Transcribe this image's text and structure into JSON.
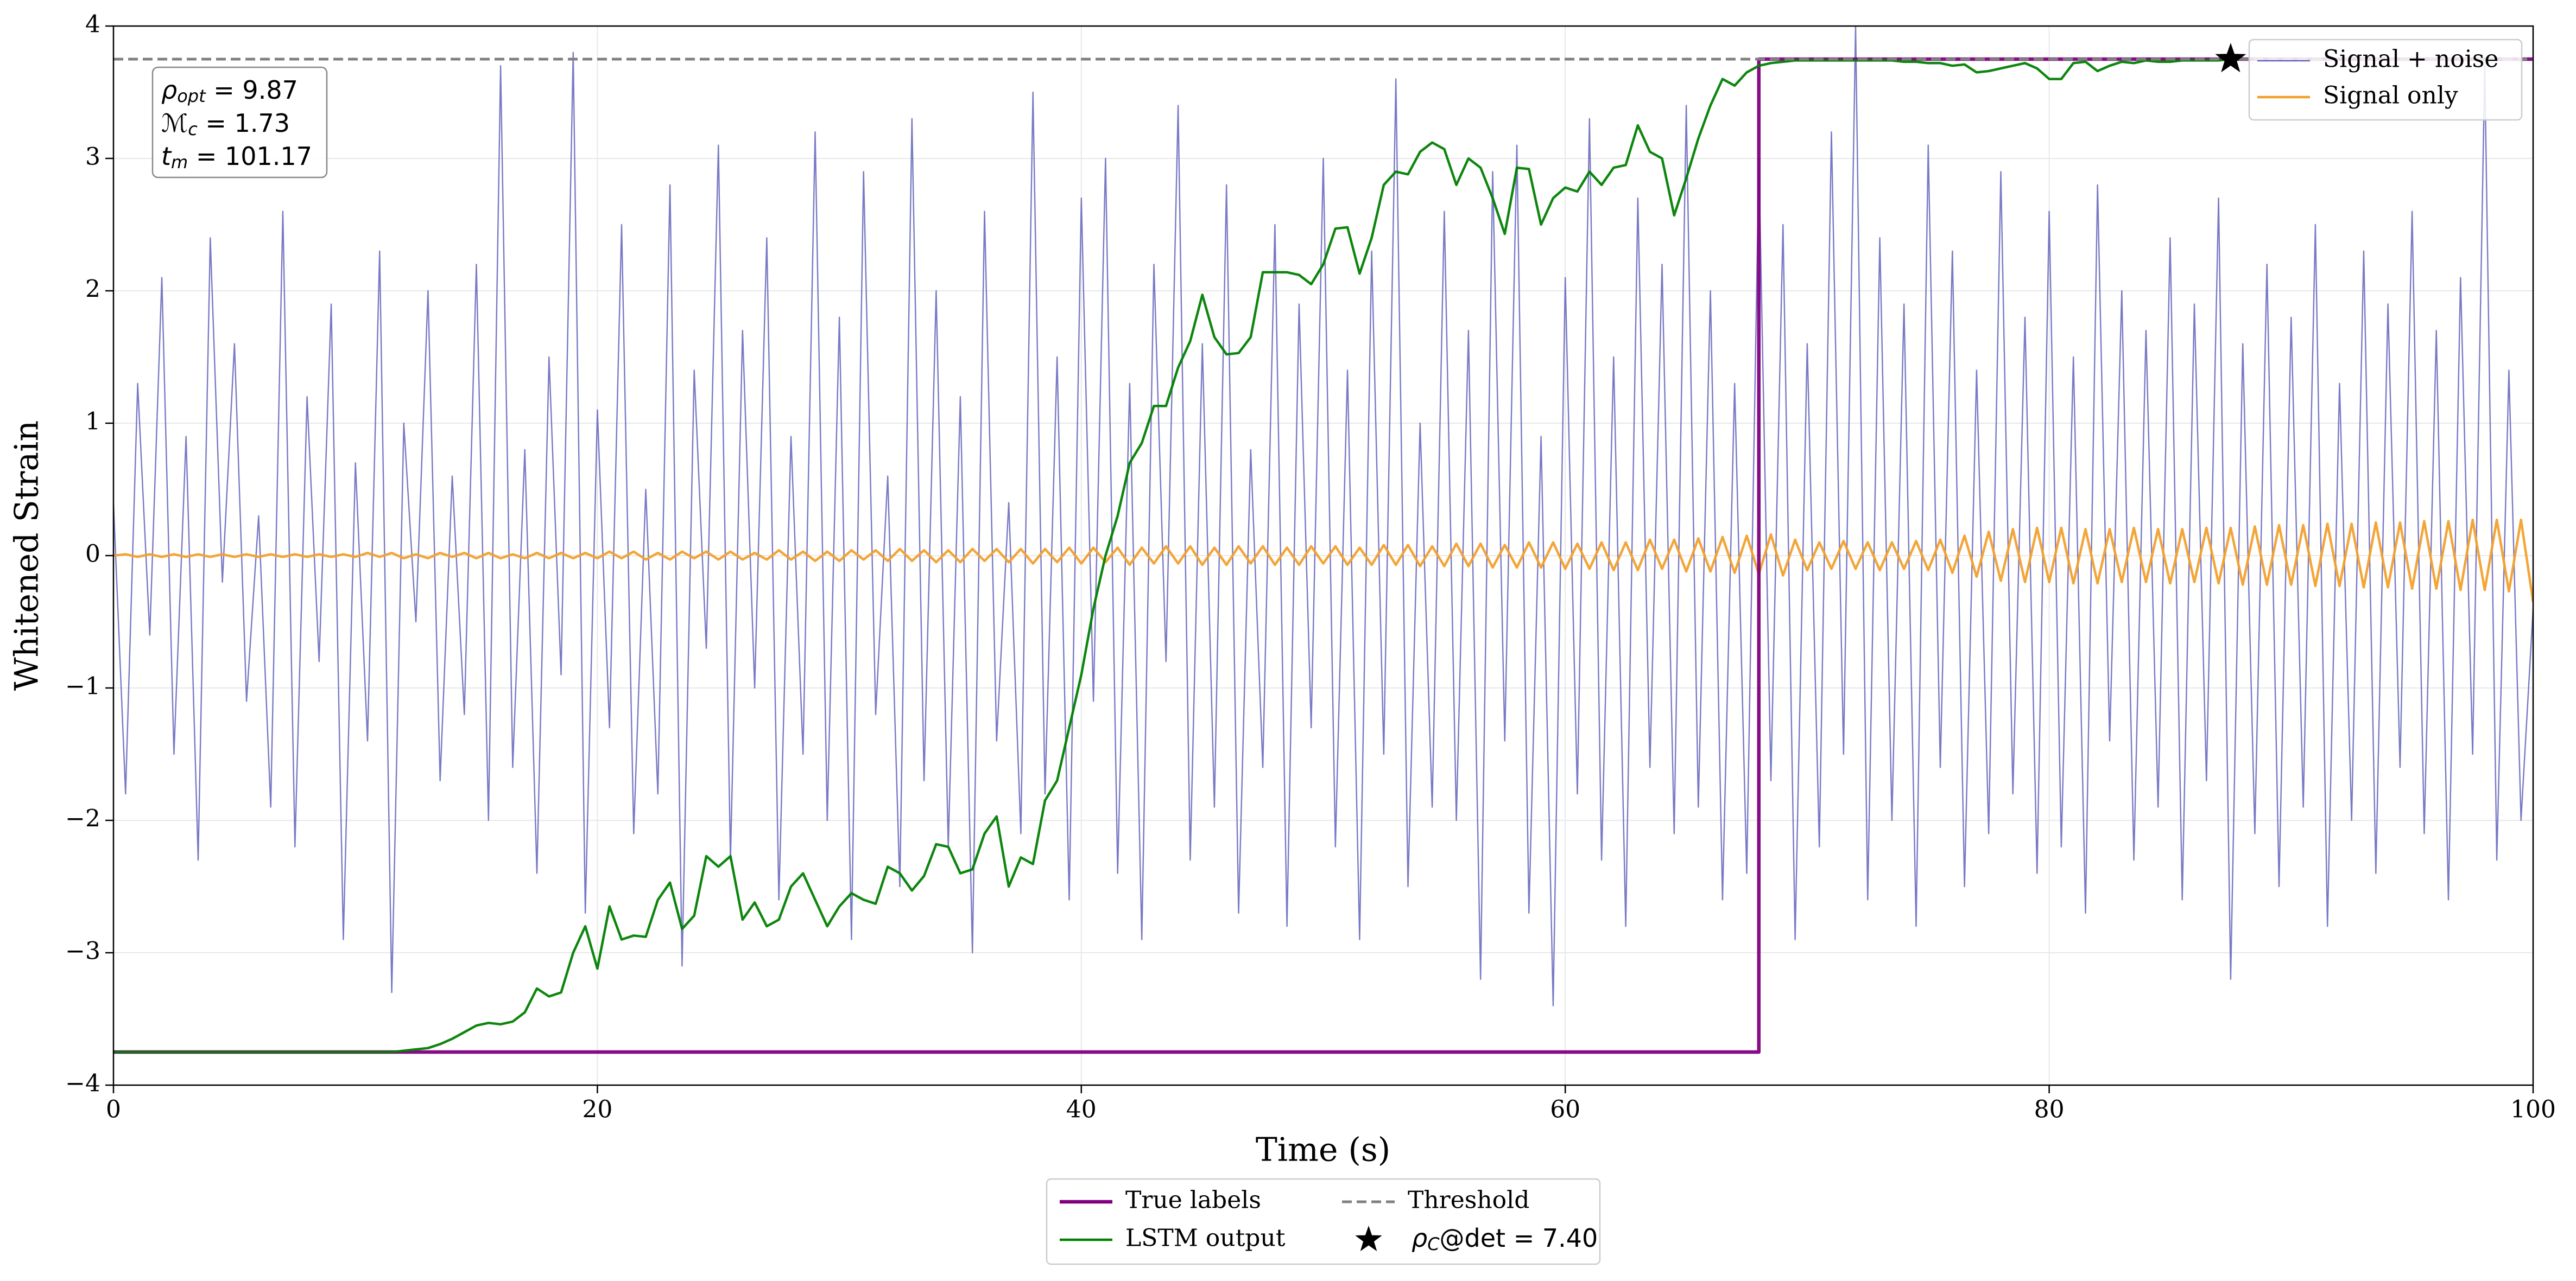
{
  "chart_data": {
    "type": "line",
    "x_label": "Time (s)",
    "y_label": "Whitened Strain",
    "xlim": [
      0,
      100
    ],
    "ylim": [
      -4,
      4
    ],
    "xticks": [
      0,
      20,
      40,
      60,
      80,
      100
    ],
    "yticks": [
      {
        "value": -4,
        "label": "−4"
      },
      {
        "value": -3,
        "label": "−3"
      },
      {
        "value": -2,
        "label": "−2"
      },
      {
        "value": -1,
        "label": "−1"
      },
      0,
      1,
      2,
      3,
      4
    ],
    "grid": true,
    "x": [
      0,
      0.5,
      1,
      1.5,
      2,
      2.5,
      3,
      3.5,
      4,
      4.5,
      5,
      5.5,
      6,
      6.5,
      7,
      7.5,
      8,
      8.5,
      9,
      9.5,
      10,
      10.5,
      11,
      11.5,
      12,
      12.5,
      13,
      13.5,
      14,
      14.5,
      15,
      15.5,
      16,
      16.5,
      17,
      17.5,
      18,
      18.5,
      19,
      19.5,
      20,
      20.5,
      21,
      21.5,
      22,
      22.5,
      23,
      23.5,
      24,
      24.5,
      25,
      25.5,
      26,
      26.5,
      27,
      27.5,
      28,
      28.5,
      29,
      29.5,
      30,
      30.5,
      31,
      31.5,
      32,
      32.5,
      33,
      33.5,
      34,
      34.5,
      35,
      35.5,
      36,
      36.5,
      37,
      37.5,
      38,
      38.5,
      39,
      39.5,
      40,
      40.5,
      41,
      41.5,
      42,
      42.5,
      43,
      43.5,
      44,
      44.5,
      45,
      45.5,
      46,
      46.5,
      47,
      47.5,
      48,
      48.5,
      49,
      49.5,
      50,
      50.5,
      51,
      51.5,
      52,
      52.5,
      53,
      53.5,
      54,
      54.5,
      55,
      55.5,
      56,
      56.5,
      57,
      57.5,
      58,
      58.5,
      59,
      59.5,
      60,
      60.5,
      61,
      61.5,
      62,
      62.5,
      63,
      63.5,
      64,
      64.5,
      65,
      65.5,
      66,
      66.5,
      67,
      67.5,
      68,
      68.5,
      69,
      69.5,
      70,
      70.5,
      71,
      71.5,
      72,
      72.5,
      73,
      73.5,
      74,
      74.5,
      75,
      75.5,
      76,
      76.5,
      77,
      77.5,
      78,
      78.5,
      79,
      79.5,
      80,
      80.5,
      81,
      81.5,
      82,
      82.5,
      83,
      83.5,
      84,
      84.5,
      85,
      85.5,
      86,
      86.5,
      87,
      87.5,
      88,
      88.5,
      89,
      89.5,
      90,
      90.5,
      91,
      91.5,
      92,
      92.5,
      93,
      93.5,
      94,
      94.5,
      95,
      95.5,
      96,
      96.5,
      97,
      97.5,
      98,
      98.5,
      99,
      99.5,
      100
    ],
    "series": [
      {
        "name": "Signal + noise",
        "color": "#6262bb",
        "legend": "upper right",
        "values": [
          0.4,
          -1.8,
          1.3,
          -0.6,
          2.1,
          -1.5,
          0.9,
          -2.3,
          2.4,
          -0.2,
          1.6,
          -1.1,
          0.3,
          -1.9,
          2.6,
          -2.2,
          1.2,
          -0.8,
          1.9,
          -2.9,
          0.7,
          -1.4,
          2.3,
          -3.3,
          1.0,
          -0.5,
          2.0,
          -1.7,
          0.6,
          -1.2,
          2.2,
          -2.0,
          3.7,
          -1.6,
          0.8,
          -2.4,
          1.5,
          -0.9,
          3.8,
          -2.7,
          1.1,
          -1.3,
          2.5,
          -2.1,
          0.5,
          -1.8,
          2.8,
          -3.1,
          1.4,
          -0.7,
          3.1,
          -2.3,
          1.7,
          -1.0,
          2.4,
          -2.6,
          0.9,
          -1.5,
          3.2,
          -2.0,
          1.8,
          -2.9,
          2.9,
          -1.2,
          0.6,
          -2.5,
          3.3,
          -1.7,
          2.0,
          -2.2,
          1.2,
          -3.0,
          2.6,
          -1.4,
          0.4,
          -2.1,
          3.5,
          -1.8,
          1.5,
          -2.6,
          2.7,
          -1.1,
          3.0,
          -2.4,
          1.3,
          -2.9,
          2.2,
          -0.8,
          3.4,
          -2.3,
          1.6,
          -1.9,
          2.8,
          -2.7,
          0.8,
          -1.6,
          2.5,
          -2.8,
          1.9,
          -1.3,
          3.0,
          -2.2,
          1.4,
          -2.9,
          2.3,
          -1.5,
          3.6,
          -2.5,
          1.0,
          -1.9,
          2.6,
          -2.0,
          1.7,
          -3.2,
          2.9,
          -1.4,
          3.1,
          -2.7,
          0.9,
          -3.4,
          2.1,
          -1.8,
          3.3,
          -2.3,
          1.5,
          -2.8,
          2.7,
          -1.6,
          2.2,
          -2.1,
          3.4,
          -1.9,
          2.0,
          -2.6,
          1.3,
          -2.4,
          3.0,
          -1.7,
          2.5,
          -2.9,
          1.6,
          -2.2,
          3.2,
          -1.5,
          4.0,
          -2.6,
          2.4,
          -2.0,
          1.9,
          -2.8,
          3.1,
          -1.6,
          2.3,
          -2.5,
          1.4,
          -2.1,
          2.9,
          -1.8,
          1.8,
          -2.4,
          2.6,
          -2.2,
          1.5,
          -2.7,
          2.8,
          -1.4,
          2.0,
          -2.3,
          1.7,
          -1.9,
          2.4,
          -2.6,
          1.9,
          -1.7,
          2.7,
          -3.2,
          1.6,
          -2.1,
          2.2,
          -2.5,
          1.8,
          -1.9,
          2.5,
          -2.8,
          1.3,
          -2.0,
          2.3,
          -2.4,
          1.9,
          -1.6,
          2.6,
          -2.1,
          1.7,
          -2.6,
          2.1,
          -1.5,
          3.7,
          -2.3,
          1.4,
          -2.0,
          -0.4
        ]
      },
      {
        "name": "Signal only",
        "color": "#f2a02c",
        "legend": "upper right",
        "values": [
          0,
          0.01,
          -0.01,
          0.01,
          -0.01,
          0.01,
          -0.01,
          0.01,
          -0.01,
          0.01,
          -0.01,
          0.01,
          -0.01,
          0.01,
          -0.01,
          0.01,
          -0.01,
          0.01,
          -0.01,
          0.01,
          -0.01,
          0.02,
          -0.01,
          0.02,
          -0.02,
          0.01,
          -0.02,
          0.02,
          -0.01,
          0.02,
          -0.02,
          0.02,
          -0.02,
          0.01,
          -0.02,
          0.02,
          -0.02,
          0.02,
          -0.02,
          0.02,
          -0.02,
          0.03,
          -0.02,
          0.03,
          -0.03,
          0.02,
          -0.03,
          0.03,
          -0.02,
          0.03,
          -0.03,
          0.03,
          -0.03,
          0.02,
          -0.03,
          0.04,
          -0.03,
          0.03,
          -0.04,
          0.03,
          -0.04,
          0.04,
          -0.03,
          0.04,
          -0.04,
          0.05,
          -0.04,
          0.04,
          -0.05,
          0.04,
          -0.05,
          0.05,
          -0.04,
          0.05,
          -0.05,
          0.05,
          -0.06,
          0.05,
          -0.05,
          0.06,
          -0.06,
          0.06,
          -0.05,
          0.06,
          -0.07,
          0.06,
          -0.06,
          0.07,
          -0.06,
          0.07,
          -0.07,
          0.06,
          -0.07,
          0.07,
          -0.06,
          0.07,
          -0.07,
          0.06,
          -0.07,
          0.07,
          -0.06,
          0.07,
          -0.07,
          0.06,
          -0.07,
          0.08,
          -0.07,
          0.08,
          -0.08,
          0.07,
          -0.08,
          0.09,
          -0.08,
          0.09,
          -0.09,
          0.08,
          -0.09,
          0.1,
          -0.09,
          0.1,
          -0.1,
          0.09,
          -0.1,
          0.1,
          -0.11,
          0.1,
          -0.11,
          0.12,
          -0.1,
          0.12,
          -0.12,
          0.13,
          -0.12,
          0.14,
          -0.13,
          0.15,
          -0.14,
          0.16,
          -0.15,
          0.12,
          -0.11,
          0.1,
          -0.1,
          0.11,
          -0.1,
          0.1,
          -0.11,
          0.1,
          -0.1,
          0.11,
          -0.11,
          0.12,
          -0.13,
          0.15,
          -0.16,
          0.18,
          -0.19,
          0.2,
          -0.2,
          0.21,
          -0.2,
          0.21,
          -0.21,
          0.2,
          -0.21,
          0.2,
          -0.2,
          0.21,
          -0.2,
          0.2,
          -0.21,
          0.2,
          -0.2,
          0.21,
          -0.21,
          0.21,
          -0.22,
          0.22,
          -0.22,
          0.23,
          -0.22,
          0.23,
          -0.23,
          0.24,
          -0.23,
          0.24,
          -0.24,
          0.25,
          -0.24,
          0.25,
          -0.25,
          0.26,
          -0.25,
          0.26,
          -0.26,
          0.27,
          -0.26,
          0.27,
          -0.27,
          0.27,
          -0.35
        ]
      },
      {
        "name": "True labels",
        "color": "#800080",
        "legend": "lower center",
        "x": [
          0,
          68,
          68,
          100
        ],
        "values": [
          -3.75,
          -3.75,
          3.75,
          3.75
        ]
      },
      {
        "name": "LSTM output",
        "color": "#008000",
        "legend": "lower center",
        "values": [
          -3.75,
          -3.75,
          -3.75,
          -3.75,
          -3.75,
          -3.75,
          -3.75,
          -3.75,
          -3.75,
          -3.75,
          -3.75,
          -3.75,
          -3.75,
          -3.75,
          -3.75,
          -3.75,
          -3.75,
          -3.75,
          -3.75,
          -3.75,
          -3.75,
          -3.75,
          -3.75,
          -3.75,
          -3.74,
          -3.73,
          -3.72,
          -3.69,
          -3.65,
          -3.6,
          -3.55,
          -3.53,
          -3.54,
          -3.52,
          -3.45,
          -3.27,
          -3.33,
          -3.3,
          -3.0,
          -2.8,
          -3.12,
          -2.65,
          -2.9,
          -2.87,
          -2.88,
          -2.6,
          -2.47,
          -2.82,
          -2.72,
          -2.27,
          -2.35,
          -2.27,
          -2.75,
          -2.62,
          -2.8,
          -2.75,
          -2.5,
          -2.4,
          -2.6,
          -2.8,
          -2.65,
          -2.55,
          -2.6,
          -2.63,
          -2.35,
          -2.4,
          -2.53,
          -2.42,
          -2.18,
          -2.2,
          -2.4,
          -2.37,
          -2.1,
          -1.97,
          -2.5,
          -2.28,
          -2.33,
          -1.85,
          -1.7,
          -1.3,
          -0.9,
          -0.4,
          0.0,
          0.3,
          0.7,
          0.85,
          1.13,
          1.13,
          1.42,
          1.62,
          1.97,
          1.65,
          1.52,
          1.53,
          1.65,
          2.14,
          2.14,
          2.14,
          2.12,
          2.05,
          2.2,
          2.47,
          2.48,
          2.13,
          2.4,
          2.8,
          2.9,
          2.88,
          3.05,
          3.12,
          3.07,
          2.8,
          3.0,
          2.93,
          2.7,
          2.43,
          2.93,
          2.92,
          2.5,
          2.7,
          2.78,
          2.75,
          2.9,
          2.8,
          2.93,
          2.95,
          3.25,
          3.05,
          3.0,
          2.57,
          2.85,
          3.15,
          3.4,
          3.6,
          3.55,
          3.65,
          3.7,
          3.72,
          3.73,
          3.74,
          3.74,
          3.74,
          3.74,
          3.74,
          3.74,
          3.74,
          3.74,
          3.74,
          3.73,
          3.73,
          3.72,
          3.72,
          3.7,
          3.71,
          3.65,
          3.66,
          3.68,
          3.7,
          3.72,
          3.68,
          3.6,
          3.6,
          3.72,
          3.73,
          3.66,
          3.7,
          3.73,
          3.72,
          3.74,
          3.73,
          3.73,
          3.74,
          3.74,
          3.74,
          3.74,
          3.75,
          null,
          null,
          null,
          null,
          null,
          null,
          null,
          null,
          null,
          null,
          null,
          null,
          null,
          null,
          null,
          null,
          null,
          null,
          null,
          null,
          null,
          null,
          null,
          null,
          null
        ]
      },
      {
        "name": "Threshold",
        "type": "hline",
        "color": "#808080",
        "dashed": true,
        "legend": "lower center",
        "value": 3.75
      },
      {
        "name_parts": [
          "ρ",
          "C",
          "@det = 7.40"
        ],
        "type": "scatter",
        "marker": "star",
        "color": "#000000",
        "legend": "lower center",
        "x": [
          87.5
        ],
        "values": [
          3.75
        ]
      }
    ],
    "annotation": [
      [
        "ρ",
        "opt",
        " = 9.87"
      ],
      [
        "ℳ",
        "c",
        " = 1.73"
      ],
      [
        "t",
        "m",
        " = 101.17"
      ]
    ]
  }
}
